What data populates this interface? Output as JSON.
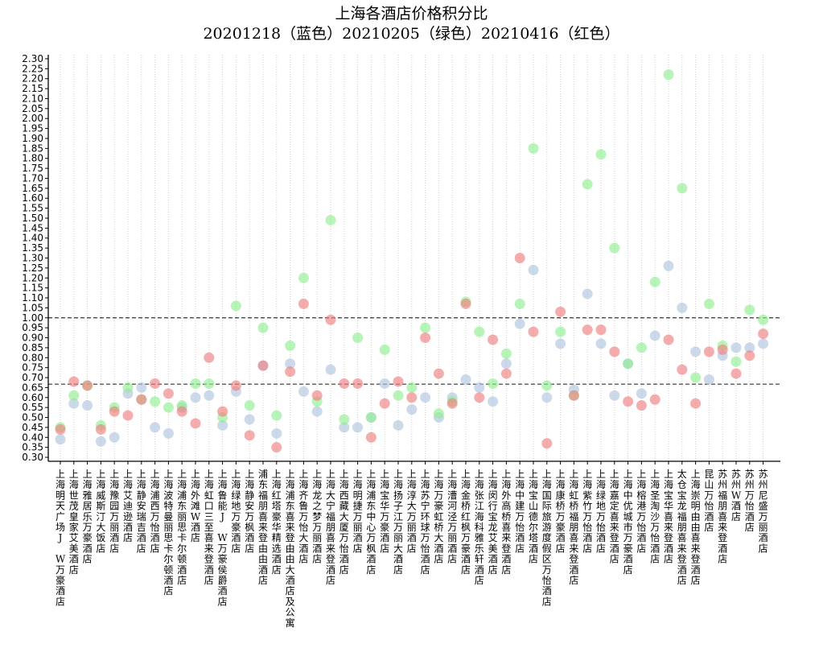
{
  "chart_data": {
    "type": "scatter",
    "title": "上海各酒店价格积分比",
    "subtitle": "20201218（蓝色）20210205（绿色）20210416（红色）",
    "ylim": [
      0.28,
      2.32
    ],
    "yticks": [
      0.3,
      0.35,
      0.4,
      0.45,
      0.5,
      0.55,
      0.6,
      0.65,
      0.7,
      0.75,
      0.8,
      0.85,
      0.9,
      0.95,
      1.0,
      1.05,
      1.1,
      1.15,
      1.2,
      1.25,
      1.3,
      1.35,
      1.4,
      1.45,
      1.5,
      1.55,
      1.6,
      1.65,
      1.7,
      1.75,
      1.8,
      1.85,
      1.9,
      1.95,
      2.0,
      2.05,
      2.1,
      2.15,
      2.2,
      2.25,
      2.3
    ],
    "ytick_labels": [
      "0.30",
      "0.35",
      "0.40",
      "0.45",
      "0.50",
      "0.55",
      "0.60",
      "0.65",
      "0.70",
      "0.75",
      "0.80",
      "0.85",
      "0.90",
      "0.95",
      "1.00",
      "1.05",
      "1.10",
      "1.15",
      "1.20",
      "1.25",
      "1.30",
      "1.35",
      "1.40",
      "1.45",
      "1.50",
      "1.55",
      "1.60",
      "1.65",
      "1.70",
      "1.75",
      "1.80",
      "1.85",
      "1.90",
      "1.95",
      "2.00",
      "2.05",
      "2.10",
      "2.15",
      "2.20",
      "2.25",
      "2.30"
    ],
    "hlines": [
      1.0,
      0.667
    ],
    "grid_x": true,
    "categories": [
      "上海明天广场J W万豪酒店",
      "上海世茂皇家艾美酒店",
      "上海雅居乐万豪酒店",
      "上海威斯汀大饭店",
      "上海豫园万丽酒店",
      "上海艾迪逊酒店",
      "上海静安瑞吉酒店",
      "上海浦西万怡酒店",
      "上海波特曼丽思卡尔顿酒店",
      "上海浦东丽思卡尔顿酒店",
      "上海外滩W酒店",
      "上海虹口三至喜来登酒店",
      "上海鲁能J W万豪侯爵酒店",
      "上海绿地万豪酒店",
      "上海静安万枫酒店",
      "浦东福朋喜来登由由酒店",
      "上海红塔豪华精选酒店",
      "上海浦东喜来登由由大酒店及公寓",
      "上海齐鲁万怡大酒店",
      "上海龙之梦万丽酒店",
      "上海大宁福朋喜来登酒店",
      "上海西藏大厦万怡酒店",
      "上海明捷万丽酒店",
      "上海浦东中心万枫酒店",
      "上海宝华万豪酒店",
      "上海扬子江万丽大酒店",
      "上海淳大万丽酒店",
      "上海苏宁环球万怡酒店",
      "上海万豪虹桥大酒店",
      "上海漕河泾万丽酒店",
      "上海金桥红枫万豪酒店",
      "上海张江海科雅乐轩酒店",
      "上海闵行宝龙艾美酒店",
      "上海外高桥喜来登酒店",
      "上海中建万怡酒店",
      "上海宝山德尔塔酒店",
      "上海国际旅游度假区万怡酒店",
      "上海康桥万豪酒店",
      "上海虹桥福朋喜来登酒店",
      "上海紫竹万怡酒店",
      "上海绿地万怡酒店",
      "上海嘉定喜来登酒店",
      "上海中优城市万豪酒店",
      "上海榕港万怡酒店",
      "上海圣淘沙万怡酒店",
      "上海宝华喜来登酒店",
      "太仓宝龙福朋喜来登酒店",
      "上海崇明由由喜来登酒店",
      "昆山万怡酒店",
      "苏州福朋喜来登酒店",
      "苏州W酒店",
      "苏州万怡酒店",
      "苏州尼盛万丽酒店"
    ],
    "series": [
      {
        "name": "20201218",
        "color": "#b0c4de",
        "values": [
          0.39,
          0.57,
          0.56,
          0.38,
          0.4,
          0.62,
          0.65,
          0.45,
          0.42,
          0.55,
          0.6,
          0.61,
          0.46,
          0.63,
          0.49,
          0.76,
          0.42,
          0.77,
          0.63,
          0.53,
          0.74,
          0.45,
          0.45,
          0.5,
          0.67,
          0.46,
          0.54,
          0.6,
          0.5,
          0.6,
          0.69,
          0.65,
          0.58,
          0.77,
          0.97,
          1.24,
          0.6,
          0.87,
          0.64,
          1.12,
          0.87,
          0.61,
          0.77,
          0.62,
          0.91,
          1.26,
          1.05,
          0.83,
          0.69,
          0.81,
          0.85,
          0.85,
          0.87
        ]
      },
      {
        "name": "20210205",
        "color": "#90ee90",
        "values": [
          0.45,
          0.61,
          0.66,
          0.46,
          0.55,
          0.65,
          0.59,
          0.58,
          0.55,
          0.56,
          0.67,
          0.67,
          0.5,
          1.06,
          0.56,
          0.95,
          0.51,
          0.86,
          1.2,
          0.58,
          1.49,
          0.49,
          0.9,
          0.5,
          0.84,
          0.61,
          0.65,
          0.95,
          0.52,
          0.58,
          1.08,
          0.93,
          0.67,
          0.82,
          1.07,
          1.85,
          0.66,
          0.93,
          0.61,
          1.67,
          1.82,
          1.35,
          0.77,
          0.85,
          1.18,
          2.22,
          1.65,
          0.7,
          1.07,
          0.86,
          0.78,
          1.04,
          0.99
        ]
      },
      {
        "name": "20210416",
        "color": "#f08080",
        "values": [
          0.44,
          0.68,
          0.66,
          0.44,
          0.53,
          0.51,
          0.59,
          0.67,
          0.62,
          0.53,
          0.47,
          0.8,
          0.53,
          0.66,
          0.41,
          0.76,
          0.35,
          0.73,
          1.07,
          0.61,
          0.99,
          0.67,
          0.67,
          0.4,
          0.57,
          0.68,
          0.6,
          0.9,
          0.72,
          0.57,
          1.07,
          0.6,
          0.89,
          0.72,
          1.3,
          0.93,
          0.37,
          1.03,
          0.61,
          0.94,
          0.94,
          0.83,
          0.58,
          0.56,
          0.59,
          0.89,
          0.74,
          0.57,
          0.83,
          0.84,
          0.72,
          0.81,
          0.92
        ]
      }
    ]
  }
}
